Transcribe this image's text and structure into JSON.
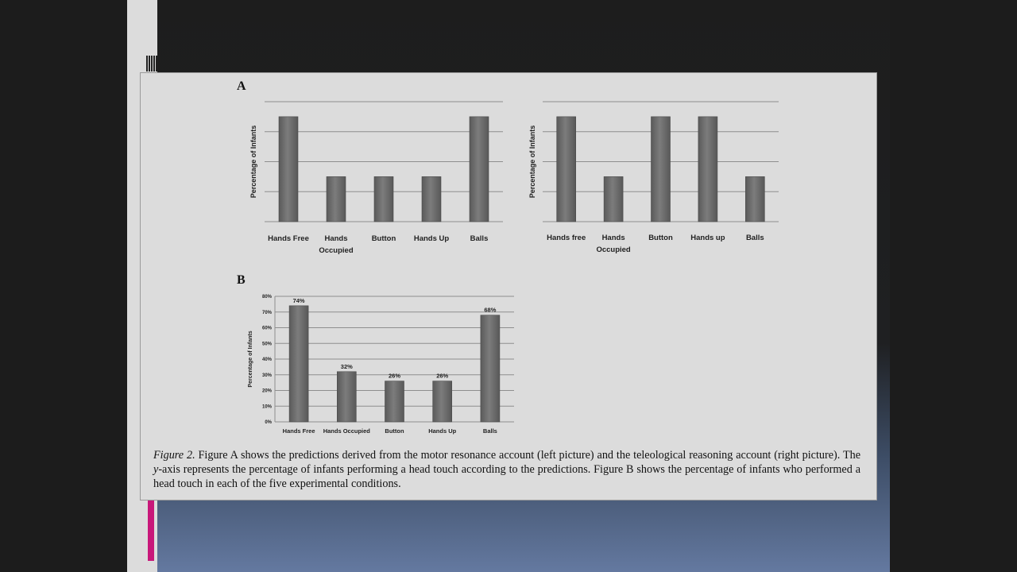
{
  "panel_a_label": "A",
  "panel_b_label": "B",
  "chart_data": [
    {
      "type": "bar",
      "panel": "A",
      "categories": [
        "Hands Free",
        "Hands Occupied",
        "Button",
        "Hands Up",
        "Balls"
      ],
      "values": [
        3.5,
        1.5,
        1.5,
        1.5,
        3.5
      ],
      "ylabel": "Percentage of Infants",
      "ylim": [
        0,
        4
      ],
      "grid": true,
      "bar_color": "#6a6a6a"
    },
    {
      "type": "bar",
      "panel": "A",
      "categories": [
        "Hands free",
        "Hands Occupied",
        "Button",
        "Hands up",
        "Balls"
      ],
      "values": [
        3.5,
        1.5,
        3.5,
        3.5,
        1.5
      ],
      "ylabel": "Percentage of Infants",
      "ylim": [
        0,
        4
      ],
      "grid": true,
      "bar_color": "#6a6a6a"
    },
    {
      "type": "bar",
      "panel": "B",
      "categories": [
        "Hands Free",
        "Hands Occupied",
        "Button",
        "Hands Up",
        "Balls"
      ],
      "values": [
        74,
        32,
        26,
        26,
        68
      ],
      "data_labels": [
        "74%",
        "32%",
        "26%",
        "26%",
        "68%"
      ],
      "yticks": [
        "0%",
        "10%",
        "20%",
        "30%",
        "40%",
        "50%",
        "60%",
        "70%",
        "80%"
      ],
      "ylabel": "Percentage of Infants",
      "ylim": [
        0,
        80
      ],
      "grid": true,
      "bar_color": "#6a6a6a"
    }
  ],
  "caption": {
    "figure_label": "Figure 2.",
    "text_1": " Figure A shows the predictions derived from the motor resonance account (left picture) and the teleological reasoning account (right picture). The ",
    "y_italic": "y",
    "text_2": "-axis represents the percentage of infants performing a head touch according to the predictions. Figure B shows the percentage of infants who performed a head touch in each of the five experimental conditions."
  }
}
